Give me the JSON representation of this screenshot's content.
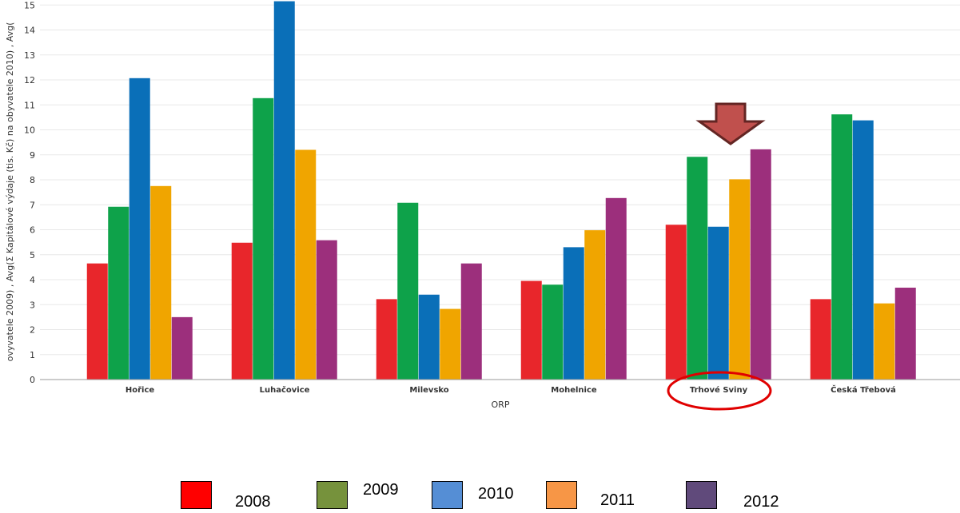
{
  "chart_data": {
    "type": "bar",
    "categories": [
      "Hořice",
      "Luhačovice",
      "Milevsko",
      "Mohelnice",
      "Trhové Sviny",
      "Česká Třebová"
    ],
    "series": [
      {
        "name": "2008",
        "color": "#e8262b",
        "values": [
          4.65,
          5.48,
          3.22,
          3.95,
          6.2,
          3.22
        ]
      },
      {
        "name": "2009",
        "color": "#0ea24a",
        "values": [
          6.92,
          11.27,
          7.08,
          3.8,
          8.92,
          10.62
        ]
      },
      {
        "name": "2010",
        "color": "#0a6fb8",
        "values": [
          12.07,
          15.15,
          3.4,
          5.3,
          6.12,
          10.38
        ]
      },
      {
        "name": "2011",
        "color": "#f0a500",
        "values": [
          7.75,
          9.2,
          2.83,
          5.98,
          8.02,
          3.05
        ]
      },
      {
        "name": "2012",
        "color": "#9c2f7c",
        "values": [
          2.5,
          5.58,
          4.65,
          7.27,
          9.22,
          3.68
        ]
      }
    ],
    "y_ticks": [
      "0",
      "1",
      "2",
      "3",
      "4",
      "5",
      "6",
      "7",
      "8",
      "9",
      "10",
      "11",
      "12",
      "13",
      "14",
      "15"
    ],
    "ylim": [
      0,
      15.2
    ],
    "xlabel": "ORP",
    "ylabel": "ovyvatele 2009) , Avg(Σ Kapitálové výdaje (tis. Kč) na obyvatele 2010) , Avg(",
    "grid": true,
    "highlight": {
      "category": "Trhové Sviny",
      "marker": "arrow and ellipse",
      "arrow_color": "#c0504d",
      "ellipse_color": "#e00000"
    }
  },
  "legend": {
    "items": [
      {
        "label": "2008",
        "color": "#ff0000"
      },
      {
        "label": "2009",
        "color": "#76923c"
      },
      {
        "label": "2010",
        "color": "#558ed5"
      },
      {
        "label": "2011",
        "color": "#f79646"
      },
      {
        "label": "2012",
        "color": "#604a7b"
      }
    ]
  }
}
